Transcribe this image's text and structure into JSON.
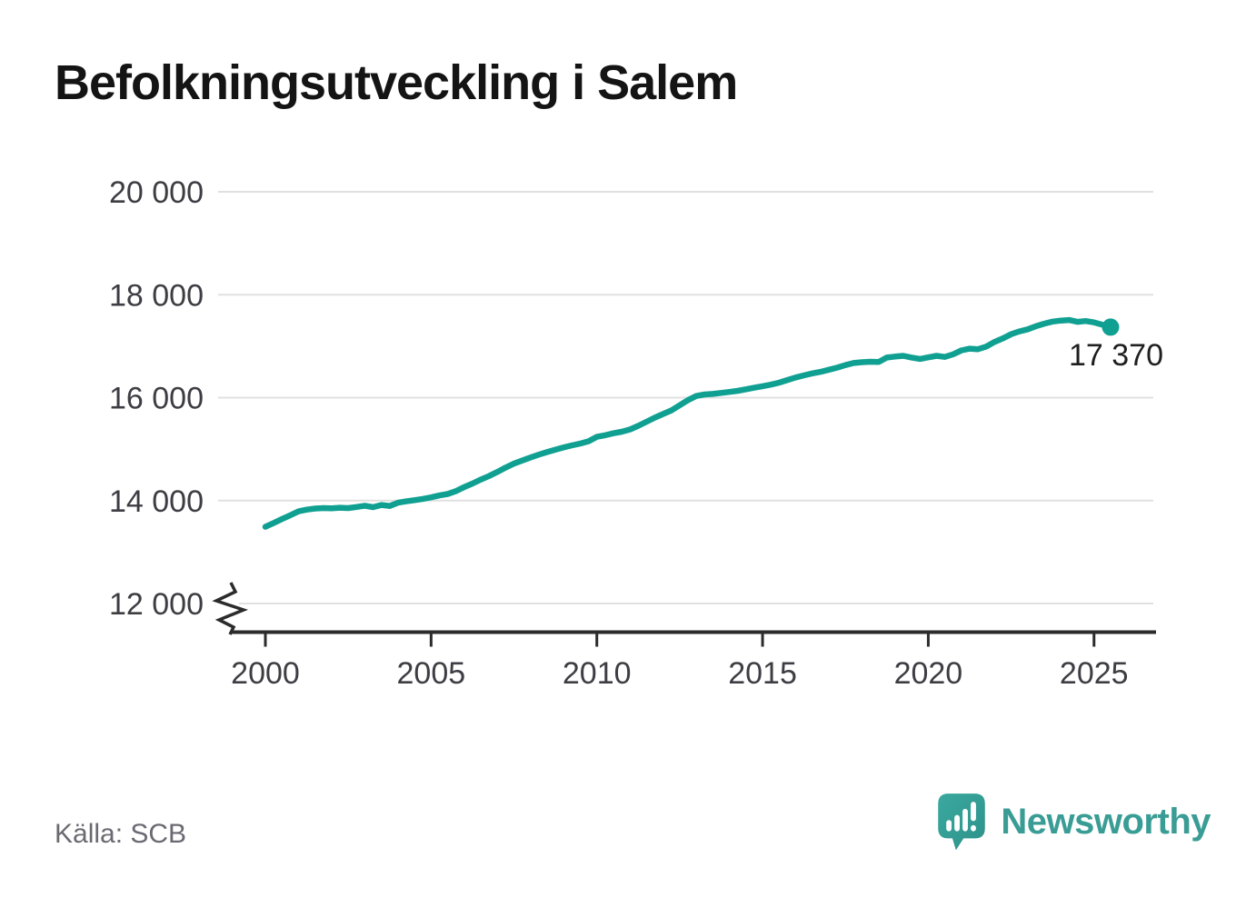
{
  "title": "Befolkningsutveckling i Salem",
  "source": "Källa: SCB",
  "brand": {
    "name": "Newsworthy",
    "teal": "#3a9d95"
  },
  "colors": {
    "line": "#10a092",
    "grid": "#e0e0e0",
    "axis": "#2b2b2b",
    "tick_text": "#3d3d43",
    "end_label_text": "#1f1f1f"
  },
  "chart_data": {
    "type": "line",
    "title": "Befolkningsutveckling i Salem",
    "source": "Källa: SCB",
    "x_start": 2000,
    "x_step": 0.25,
    "values": [
      13490,
      13565,
      13640,
      13715,
      13790,
      13825,
      13845,
      13855,
      13850,
      13862,
      13855,
      13875,
      13900,
      13872,
      13915,
      13895,
      13958,
      13985,
      14008,
      14032,
      14062,
      14100,
      14128,
      14185,
      14262,
      14332,
      14408,
      14478,
      14558,
      14642,
      14718,
      14778,
      14838,
      14892,
      14942,
      14988,
      15032,
      15072,
      15108,
      15152,
      15238,
      15268,
      15308,
      15338,
      15382,
      15452,
      15532,
      15612,
      15682,
      15752,
      15852,
      15952,
      16032,
      16062,
      16072,
      16092,
      16112,
      16132,
      16162,
      16192,
      16222,
      16252,
      16292,
      16342,
      16392,
      16432,
      16472,
      16502,
      16542,
      16582,
      16632,
      16672,
      16688,
      16698,
      16692,
      16778,
      16798,
      16812,
      16778,
      16752,
      16782,
      16812,
      16792,
      16842,
      16918,
      16952,
      16942,
      16992,
      17082,
      17152,
      17232,
      17288,
      17328,
      17388,
      17438,
      17478,
      17498,
      17508,
      17472,
      17488,
      17462,
      17418,
      17370
    ],
    "end_value": 17370,
    "end_label": "17 370",
    "xticks": [
      2000,
      2005,
      2010,
      2015,
      2020,
      2025
    ],
    "xtick_labels": [
      "2000",
      "2005",
      "2010",
      "2015",
      "2020",
      "2025"
    ],
    "yticks": [
      12000,
      14000,
      16000,
      18000,
      20000
    ],
    "ytick_labels": [
      "12 000",
      "14 000",
      "16 000",
      "18 000",
      "20 000"
    ],
    "ylim": [
      12000,
      20000
    ],
    "xlim": [
      1998.6,
      2026.8
    ],
    "grid": "horizontal",
    "legend": false,
    "y_axis_break": true,
    "line_color": "#10a092"
  }
}
